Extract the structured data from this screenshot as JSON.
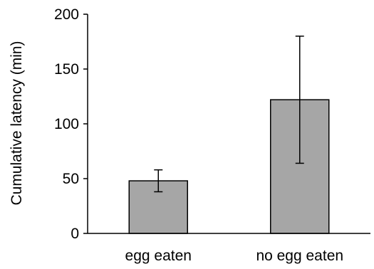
{
  "chart_data": {
    "type": "bar",
    "categories": [
      "egg eaten",
      "no egg eaten"
    ],
    "values": [
      48,
      122
    ],
    "error_upper": [
      58,
      180
    ],
    "error_lower": [
      38,
      64
    ],
    "xlabel": "",
    "ylabel": "Cumulative latency (min)",
    "ylim": [
      0,
      200
    ],
    "yticks": [
      0,
      50,
      100,
      150,
      200
    ],
    "grid": false,
    "bar_color": "#a6a6a6",
    "bar_edge_color": "#000000"
  }
}
